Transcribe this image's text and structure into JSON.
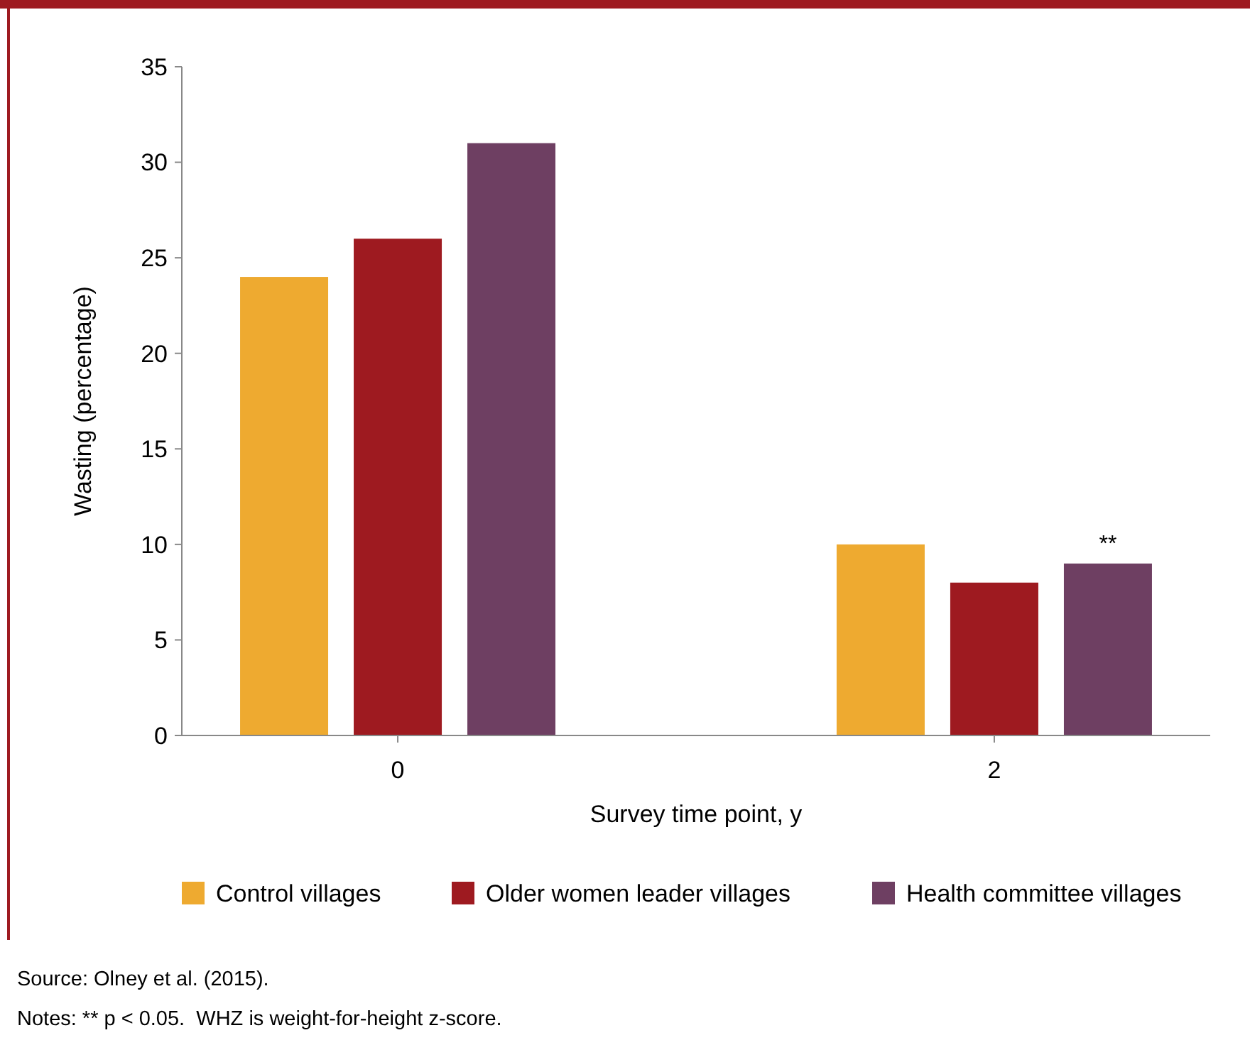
{
  "chart_data": {
    "type": "bar",
    "xlabel": "Survey time point, y",
    "ylabel": "Wasting (percentage)",
    "categories": [
      "0",
      "2"
    ],
    "series": [
      {
        "name": "Control villages",
        "color": "#eeaa30",
        "values": [
          24,
          10
        ]
      },
      {
        "name": "Older women leader villages",
        "color": "#9e1a20",
        "values": [
          26,
          8
        ]
      },
      {
        "name": "Health committee villages",
        "color": "#6e3f62",
        "values": [
          31,
          9
        ]
      }
    ],
    "ylim": [
      0,
      35
    ],
    "yticks": [
      0,
      5,
      10,
      15,
      20,
      25,
      30,
      35
    ],
    "grid": false,
    "legend": "bottom",
    "annotations": [
      "**",
      "Source: Olney et al. (2015).",
      "Notes: ** p < 0.05.  WHZ is weight-for-height z-score."
    ]
  }
}
